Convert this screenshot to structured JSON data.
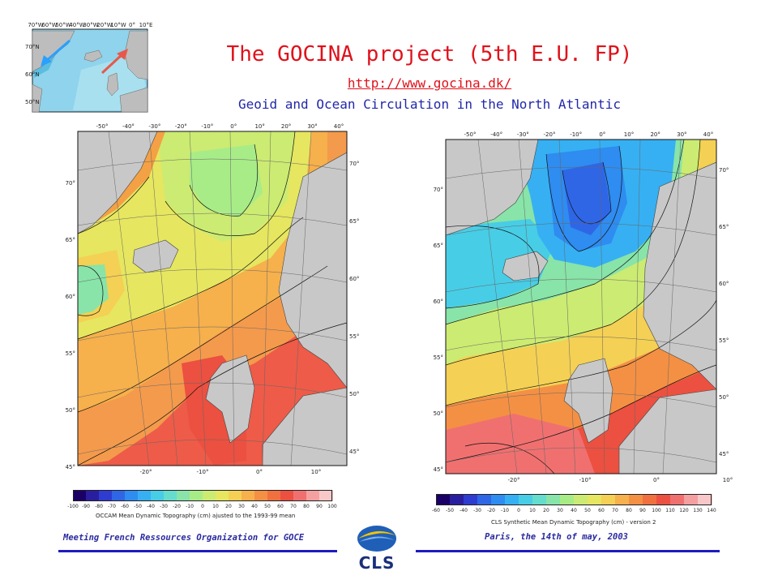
{
  "header": {
    "title": "The GOCINA project (5th E.U. FP)",
    "url": "http://www.gocina.dk/",
    "subtitle": "Geoid and Ocean Circulation in the North Atlantic"
  },
  "inset_map": {
    "top_labels": [
      "70°W",
      "60°W",
      "50°W",
      "40°W",
      "30°W",
      "20°W",
      "10°W",
      "0°",
      "10°E"
    ],
    "left_labels": [
      "70°N",
      "60°N",
      "50°N"
    ],
    "arrow_colors": [
      "#2aa0ff",
      "#e8584a"
    ]
  },
  "left_map": {
    "lon_labels": [
      "-50°",
      "-40°",
      "-30°",
      "-20°",
      "-10°",
      "0°",
      "10°",
      "20°",
      "30°",
      "40°"
    ],
    "lat_labels_left": [
      "70°",
      "65°",
      "60°",
      "55°",
      "50°",
      "45°"
    ],
    "lat_labels_right": [
      "70°",
      "65°",
      "60°",
      "55°",
      "50°",
      "45°"
    ],
    "bottom_labels": [
      "-20°",
      "-10°",
      "0°",
      "10°"
    ],
    "colorbar_labels": [
      "-100",
      "-90",
      "-80",
      "-70",
      "-60",
      "-50",
      "-40",
      "-30",
      "-20",
      "-10",
      "0",
      "10",
      "20",
      "30",
      "40",
      "50",
      "60",
      "70",
      "80",
      "90",
      "100"
    ],
    "caption": "OCCAM Mean Dynamic Topography (cm) ajusted to the 1993-99 mean"
  },
  "right_map": {
    "lon_labels": [
      "-50°",
      "-40°",
      "-30°",
      "-20°",
      "-10°",
      "0°",
      "10°",
      "20°",
      "30°",
      "40°"
    ],
    "lat_labels_left": [
      "70°",
      "65°",
      "60°",
      "55°",
      "50°",
      "45°"
    ],
    "lat_labels_right": [
      "70°",
      "65°",
      "60°",
      "55°",
      "50°",
      "45°"
    ],
    "bottom_labels": [
      "-20°",
      "-10°",
      "0°",
      "10°"
    ],
    "colorbar_labels": [
      "-60",
      "-50",
      "-40",
      "-30",
      "-20",
      "-10",
      "0",
      "10",
      "20",
      "30",
      "40",
      "50",
      "60",
      "70",
      "80",
      "90",
      "100",
      "110",
      "120",
      "130",
      "140"
    ],
    "caption": "CLS Synthetic Mean Dynamic Topography (cm) - version 2"
  },
  "colorbar_colors": [
    "#1a0066",
    "#2a1ea0",
    "#2e3cd0",
    "#2f66e6",
    "#2f8cf0",
    "#36b0f2",
    "#48cde6",
    "#66dccc",
    "#88e4a8",
    "#a8ec88",
    "#cceb72",
    "#e6e660",
    "#f4d054",
    "#f6b04c",
    "#f49044",
    "#f07040",
    "#ec5040",
    "#f07070",
    "#f4a0a0",
    "#f8c8c8",
    "#fce6e6"
  ],
  "footer": {
    "left": "Meeting French Ressources Organization for GOCE",
    "right": "Paris, the 14th of may, 2003",
    "logo_text": "CLS"
  }
}
